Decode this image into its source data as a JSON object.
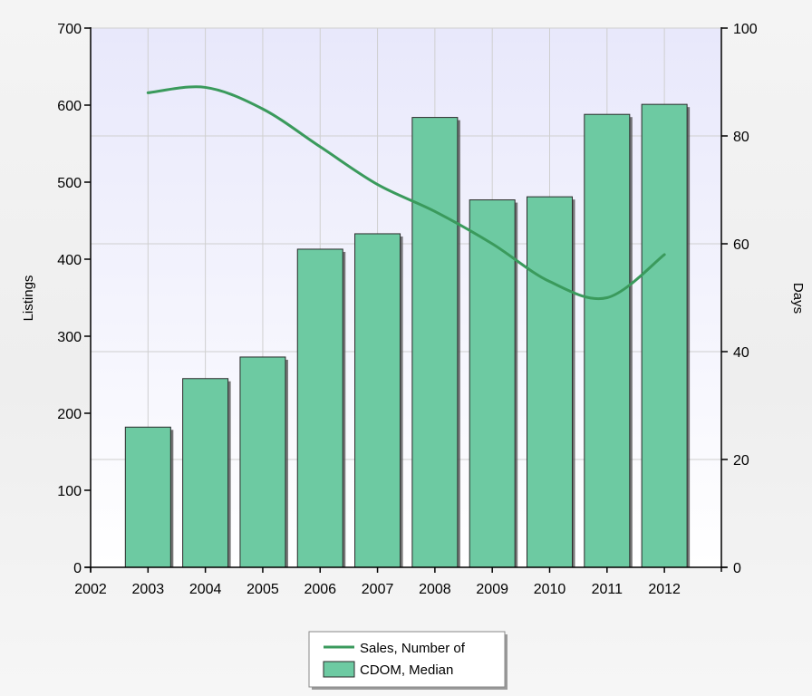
{
  "chart_data": {
    "type": "bar",
    "x": [
      2003,
      2004,
      2005,
      2006,
      2007,
      2008,
      2009,
      2010,
      2011,
      2012
    ],
    "xlim": [
      2002,
      2012
    ],
    "x_ticks": [
      "2002",
      "2003",
      "2004",
      "2005",
      "2006",
      "2007",
      "2008",
      "2009",
      "2010",
      "2011",
      "2012"
    ],
    "ylabel": "Listings",
    "ylim": [
      0,
      700
    ],
    "y_ticks": [
      "0",
      "100",
      "200",
      "300",
      "400",
      "500",
      "600",
      "700"
    ],
    "y2label": "Days",
    "y2lim": [
      0,
      100
    ],
    "y2_ticks": [
      "0",
      "20",
      "40",
      "60",
      "80",
      "100"
    ],
    "grid": true,
    "legend_position": "bottom-center",
    "series": [
      {
        "name": "CDOM, Median",
        "type": "bar",
        "axis": "left",
        "color": "#6dcaa2",
        "values": [
          182,
          245,
          273,
          413,
          433,
          584,
          477,
          481,
          588,
          601
        ]
      },
      {
        "name": "Sales, Number of",
        "type": "line",
        "axis": "right",
        "color": "#3a9a5c",
        "values": [
          88,
          89,
          85,
          78,
          71,
          66,
          60,
          53,
          50,
          58
        ]
      }
    ]
  }
}
